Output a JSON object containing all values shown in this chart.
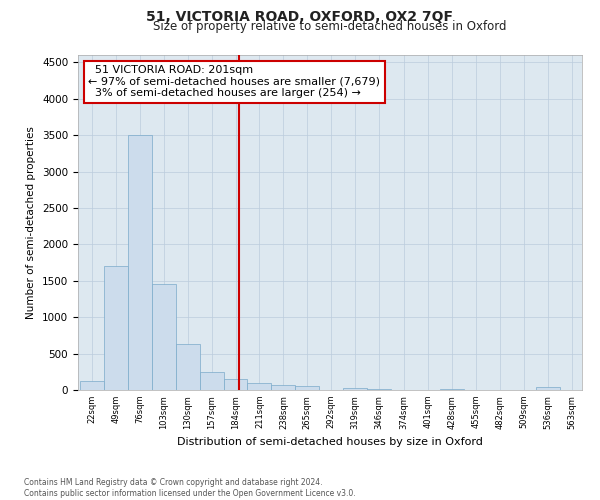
{
  "title": "51, VICTORIA ROAD, OXFORD, OX2 7QF",
  "subtitle": "Size of property relative to semi-detached houses in Oxford",
  "xlabel": "Distribution of semi-detached houses by size in Oxford",
  "ylabel": "Number of semi-detached properties",
  "property_size": 201,
  "property_label": "51 VICTORIA ROAD: 201sqm",
  "pct_smaller": 97,
  "count_smaller": 7679,
  "pct_larger": 3,
  "count_larger": 254,
  "bar_color": "#ccdcec",
  "bar_edge_color": "#7aaaca",
  "vline_color": "#cc0000",
  "annotation_box_color": "#cc0000",
  "background_color": "#ffffff",
  "plot_bg_color": "#dde8f0",
  "grid_color": "#bbccdd",
  "footer_text": "Contains HM Land Registry data © Crown copyright and database right 2024.\nContains public sector information licensed under the Open Government Licence v3.0.",
  "bin_edges": [
    22,
    49,
    76,
    103,
    130,
    157,
    184,
    211,
    238,
    265,
    292,
    319,
    346,
    374,
    401,
    428,
    455,
    482,
    509,
    536,
    563
  ],
  "bin_counts": [
    125,
    1700,
    3500,
    1450,
    625,
    250,
    150,
    100,
    75,
    50,
    0,
    30,
    20,
    0,
    0,
    10,
    0,
    0,
    0,
    35
  ],
  "ylim": [
    0,
    4600
  ],
  "yticks": [
    0,
    500,
    1000,
    1500,
    2000,
    2500,
    3000,
    3500,
    4000,
    4500
  ]
}
